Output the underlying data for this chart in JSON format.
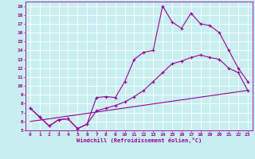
{
  "xlabel": "Windchill (Refroidissement éolien,°C)",
  "bg_color": "#c8eef0",
  "line_color": "#990099",
  "grid_color": "#ffffff",
  "xlim": [
    -0.5,
    23.5
  ],
  "ylim": [
    5,
    19.5
  ],
  "xticks": [
    0,
    1,
    2,
    3,
    4,
    5,
    6,
    7,
    8,
    9,
    10,
    11,
    12,
    13,
    14,
    15,
    16,
    17,
    18,
    19,
    20,
    21,
    22,
    23
  ],
  "yticks": [
    5,
    6,
    7,
    8,
    9,
    10,
    11,
    12,
    13,
    14,
    15,
    16,
    17,
    18,
    19
  ],
  "line1_x": [
    0,
    1,
    2,
    3,
    4,
    5,
    6,
    7,
    8,
    9,
    10,
    11,
    12,
    13,
    14,
    15,
    16,
    17,
    18,
    19,
    20,
    21,
    22,
    23
  ],
  "line1_y": [
    7.5,
    6.5,
    5.5,
    6.2,
    6.3,
    5.2,
    5.7,
    8.7,
    8.8,
    8.7,
    10.5,
    13.0,
    13.8,
    14.0,
    19.0,
    17.2,
    16.5,
    18.2,
    17.0,
    16.8,
    16.0,
    14.0,
    12.0,
    10.5
  ],
  "line2_x": [
    0,
    1,
    2,
    3,
    4,
    5,
    6,
    7,
    8,
    9,
    10,
    11,
    12,
    13,
    14,
    15,
    16,
    17,
    18,
    19,
    20,
    21,
    22,
    23
  ],
  "line2_y": [
    7.5,
    6.5,
    5.5,
    6.2,
    6.3,
    5.2,
    5.7,
    7.2,
    7.5,
    7.8,
    8.2,
    8.8,
    9.5,
    10.5,
    11.5,
    12.5,
    12.8,
    13.2,
    13.5,
    13.2,
    13.0,
    12.0,
    11.5,
    9.5
  ],
  "line3_x": [
    0,
    23
  ],
  "line3_y": [
    6.0,
    9.5
  ]
}
